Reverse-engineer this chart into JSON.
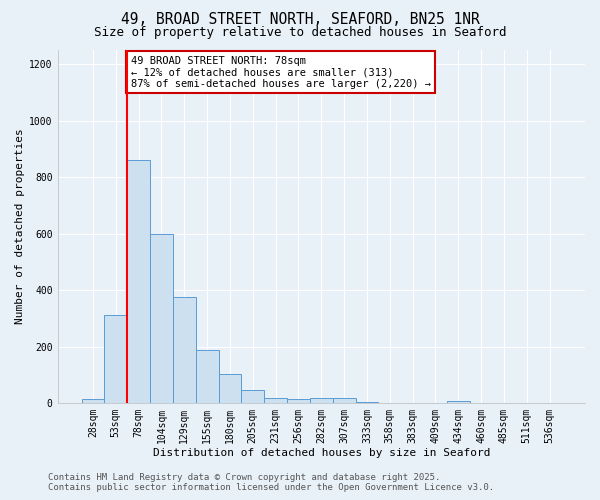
{
  "title": "49, BROAD STREET NORTH, SEAFORD, BN25 1NR",
  "subtitle": "Size of property relative to detached houses in Seaford",
  "xlabel": "Distribution of detached houses by size in Seaford",
  "ylabel": "Number of detached properties",
  "bin_labels": [
    "28sqm",
    "53sqm",
    "78sqm",
    "104sqm",
    "129sqm",
    "155sqm",
    "180sqm",
    "205sqm",
    "231sqm",
    "256sqm",
    "282sqm",
    "307sqm",
    "333sqm",
    "358sqm",
    "383sqm",
    "409sqm",
    "434sqm",
    "460sqm",
    "485sqm",
    "511sqm",
    "536sqm"
  ],
  "bar_values": [
    15,
    313,
    860,
    600,
    375,
    190,
    105,
    48,
    20,
    15,
    20,
    20,
    5,
    0,
    0,
    0,
    8,
    0,
    0,
    0,
    0
  ],
  "bar_color": "#cde0f0",
  "bar_edge_color": "#5b9bd5",
  "red_line_index": 2,
  "annotation_text": "49 BROAD STREET NORTH: 78sqm\n← 12% of detached houses are smaller (313)\n87% of semi-detached houses are larger (2,220) →",
  "annotation_box_color": "#ffffff",
  "annotation_border_color": "#cc0000",
  "ylim": [
    0,
    1250
  ],
  "yticks": [
    0,
    200,
    400,
    600,
    800,
    1000,
    1200
  ],
  "footer1": "Contains HM Land Registry data © Crown copyright and database right 2025.",
  "footer2": "Contains public sector information licensed under the Open Government Licence v3.0.",
  "bg_color": "#e8f0f8",
  "plot_bg_color": "#e8f0f8",
  "title_fontsize": 10.5,
  "subtitle_fontsize": 9,
  "axis_label_fontsize": 8,
  "tick_fontsize": 7,
  "annotation_fontsize": 7.5,
  "footer_fontsize": 6.5
}
